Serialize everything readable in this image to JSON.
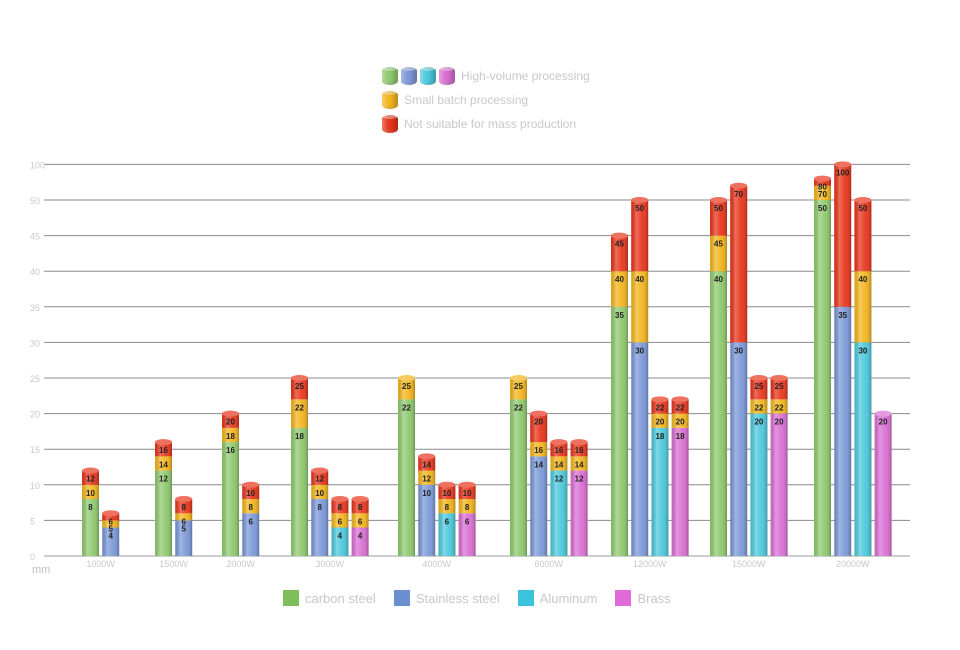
{
  "top_legend": [
    {
      "label": "High-volume processing",
      "swatches": [
        "#8fc96f",
        "#7c98d8",
        "#4cc8dc",
        "#d96fd3"
      ]
    },
    {
      "label": "Small batch processing",
      "swatches": [
        "#f2b51d"
      ]
    },
    {
      "label": "Not suitable for mass production",
      "swatches": [
        "#e8351c"
      ]
    }
  ],
  "bottom_legend": [
    {
      "label": "carbon steel",
      "color": "#7fbf5a"
    },
    {
      "label": "Stainless steel",
      "color": "#6a8fd0"
    },
    {
      "label": "Aluminum",
      "color": "#3cc3dc"
    },
    {
      "label": "Brass",
      "color": "#e06ad8"
    }
  ],
  "chart_data": {
    "type": "bar",
    "unit": "mm",
    "y_ticks": [
      "0",
      "5",
      "10",
      "15",
      "20",
      "25",
      "30",
      "35",
      "40",
      "45",
      "50",
      "100"
    ],
    "categories": [
      "1000W",
      "1500W",
      "2000W",
      "3000W",
      "4000W",
      "6000W",
      "12000W",
      "15000W",
      "20000W"
    ],
    "tier_colors": {
      "high": "material",
      "small": "#f2b51d",
      "unsuitable": "#e8351c"
    },
    "series": [
      {
        "name": "carbon steel",
        "color": "#8fc96f",
        "stacks": [
          [
            8,
            10,
            12
          ],
          [
            12,
            14,
            16
          ],
          [
            16,
            18,
            20
          ],
          [
            18,
            22,
            25
          ],
          [
            22,
            25
          ],
          [
            22,
            25
          ],
          [
            35,
            40,
            45
          ],
          [
            40,
            45,
            50
          ],
          [
            50,
            70,
            80
          ]
        ]
      },
      {
        "name": "Stainless steel",
        "color": "#7c98d8",
        "stacks": [
          [
            4,
            5,
            6
          ],
          [
            5,
            6,
            8
          ],
          [
            6,
            8,
            10
          ],
          [
            8,
            10,
            12
          ],
          [
            10,
            12,
            14
          ],
          [
            14,
            16,
            20
          ],
          [
            30,
            40,
            50
          ],
          [
            30,
            70
          ],
          [
            35,
            100
          ]
        ]
      },
      {
        "name": "Aluminum",
        "color": "#4cc8dc",
        "stacks": [
          null,
          null,
          null,
          [
            4,
            6,
            8
          ],
          [
            6,
            8,
            10
          ],
          [
            12,
            14,
            16
          ],
          [
            18,
            20,
            22
          ],
          [
            20,
            22,
            25
          ],
          [
            30,
            40,
            50
          ]
        ]
      },
      {
        "name": "Brass",
        "color": "#d96fd3",
        "stacks": [
          null,
          null,
          null,
          [
            4,
            6,
            8
          ],
          [
            6,
            8,
            10
          ],
          [
            12,
            14,
            16
          ],
          [
            18,
            20,
            22
          ],
          [
            20,
            22,
            25
          ],
          [
            20
          ]
        ]
      }
    ],
    "grid": true
  }
}
